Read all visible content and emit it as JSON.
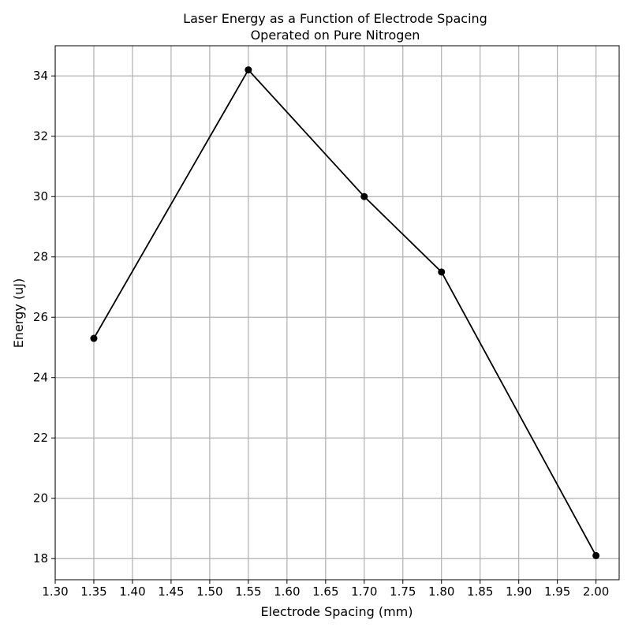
{
  "chart_data": {
    "type": "line",
    "title": "Laser Energy as a Function of Electrode Spacing",
    "subtitle": "Operated on Pure Nitrogen",
    "xlabel": "Electrode Spacing (mm)",
    "ylabel": "Energy (uJ)",
    "xlim": [
      1.3,
      2.03
    ],
    "ylim": [
      17.3,
      35.0
    ],
    "x_ticks": [
      "1.30",
      "1.35",
      "1.40",
      "1.45",
      "1.50",
      "1.55",
      "1.60",
      "1.65",
      "1.70",
      "1.75",
      "1.80",
      "1.85",
      "1.90",
      "1.95",
      "2.00"
    ],
    "y_ticks": [
      "18",
      "20",
      "22",
      "24",
      "26",
      "28",
      "30",
      "32",
      "34"
    ],
    "grid": true,
    "series": [
      {
        "color": "#000000",
        "marker": "circle",
        "x": [
          1.35,
          1.55,
          1.7,
          1.8,
          2.0
        ],
        "y": [
          25.3,
          34.2,
          30.0,
          27.5,
          18.1
        ]
      }
    ]
  }
}
